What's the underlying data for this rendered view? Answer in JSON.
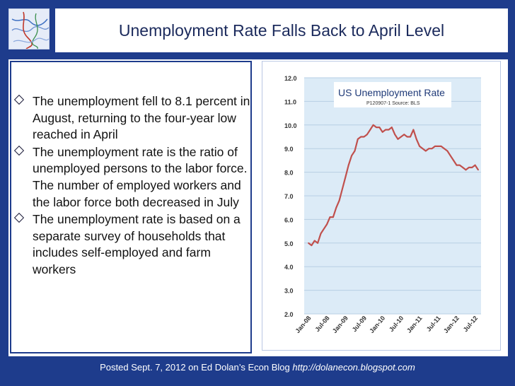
{
  "slide": {
    "title": "Unemployment Rate Falls Back to April Level",
    "bullets": [
      "The unemployment fell to 8.1 percent in August, returning to the four-year low reached in April",
      "The unemployment rate is the ratio of unemployed persons to the labor force. The number of employed workers and the labor force both decreased in July",
      "The unemployment rate is based on a separate survey of households that includes self-employed and farm workers"
    ],
    "footer_text": "Posted Sept. 7, 2012 on Ed Dolan’s Econ Blog",
    "footer_url": "http://dolanecon.blogspot.com"
  },
  "colors": {
    "background": "#1e3c8c",
    "title_text": "#1b2a5c",
    "chart_bg": "#dcebf7",
    "line": "#c0504d"
  },
  "icons": {
    "bullet": "diamond-outline-icon",
    "logo": "decorative-logo-icon"
  },
  "chart_data": {
    "type": "line",
    "title": "US Unemployment Rate",
    "subtitle": "P120907-1 Source: BLS",
    "ylim": [
      2.0,
      12.0
    ],
    "yticks": [
      "2.0",
      "3.0",
      "4.0",
      "5.0",
      "6.0",
      "7.0",
      "8.0",
      "9.0",
      "10.0",
      "11.0",
      "12.0"
    ],
    "xticks": [
      "Jan-08",
      "Jul-08",
      "Jan-09",
      "Jul-09",
      "Jan-10",
      "Jul-10",
      "Jan-11",
      "Jul-11",
      "Jan-12",
      "Jul-12"
    ],
    "grid": true,
    "series": [
      {
        "values": [
          5.0,
          4.9,
          5.1,
          5.0,
          5.4,
          5.6,
          5.8,
          6.1,
          6.1,
          6.5,
          6.8,
          7.3,
          7.8,
          8.3,
          8.7,
          8.9,
          9.4,
          9.5,
          9.5,
          9.6,
          9.8,
          10.0,
          9.9,
          9.9,
          9.7,
          9.8,
          9.8,
          9.9,
          9.6,
          9.4,
          9.5,
          9.6,
          9.5,
          9.5,
          9.8,
          9.4,
          9.1,
          9.0,
          8.9,
          9.0,
          9.0,
          9.1,
          9.1,
          9.1,
          9.0,
          8.9,
          8.7,
          8.5,
          8.3,
          8.3,
          8.2,
          8.1,
          8.2,
          8.2,
          8.3,
          8.1
        ]
      }
    ]
  }
}
